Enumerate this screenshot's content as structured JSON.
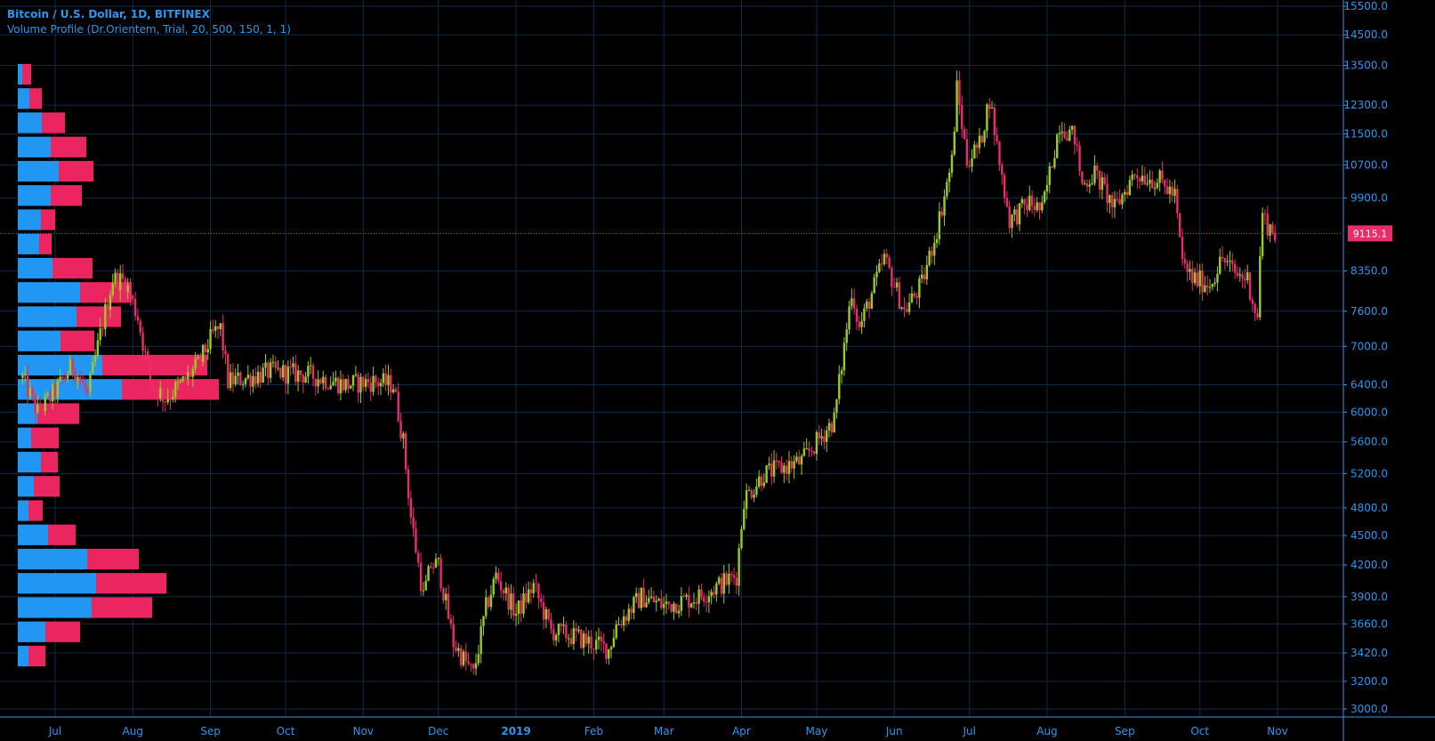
{
  "header": {
    "symbol_line": "Bitcoin / U.S. Dollar, 1D, BITFINEX",
    "indicator_line": "Volume Profile (Dr.Orientem, Trial, 20, 500, 150, 1, 1)"
  },
  "colors": {
    "background": "#000000",
    "grid": "#0e2a4a",
    "axis_text": "#2a97f0",
    "up": "#9ccc24",
    "down": "#ea2d6a",
    "vp_up": "#2196f3",
    "vp_down": "#ea2560",
    "last_price": "#ea2d6a"
  },
  "chart_data": {
    "type": "candlestick",
    "title": "Bitcoin / U.S. Dollar, 1D, BITFINEX",
    "y_scale": "log",
    "ylim": [
      3000,
      15500
    ],
    "y_ticks": [
      15500,
      14500,
      13500,
      12300,
      11500,
      10700,
      9900,
      9115.1,
      8350,
      7600,
      7000,
      6400,
      6000,
      5600,
      5200,
      4800,
      4500,
      4200,
      3900,
      3660,
      3420,
      3200,
      3000
    ],
    "y_tick_labels": [
      "15500.0",
      "14500.0",
      "13500.0",
      "12300.0",
      "11500.0",
      "10700.0",
      "9900.0",
      "9115.1",
      "8350.0",
      "7600.0",
      "7000.0",
      "6400.0",
      "6000.0",
      "5600.0",
      "5200.0",
      "4800.0",
      "4500.0",
      "4200.0",
      "3900.0",
      "3660.0",
      "3420.0",
      "3200.0",
      "3000.0"
    ],
    "x_labels": [
      {
        "label": "Jul",
        "date": "2018-07-01",
        "bold": false
      },
      {
        "label": "Aug",
        "date": "2018-08-01",
        "bold": false
      },
      {
        "label": "Sep",
        "date": "2018-09-01",
        "bold": false
      },
      {
        "label": "Oct",
        "date": "2018-10-01",
        "bold": false
      },
      {
        "label": "Nov",
        "date": "2018-11-01",
        "bold": false
      },
      {
        "label": "Dec",
        "date": "2018-12-01",
        "bold": false
      },
      {
        "label": "2019",
        "date": "2019-01-01",
        "bold": true
      },
      {
        "label": "Feb",
        "date": "2019-02-01",
        "bold": false
      },
      {
        "label": "Mar",
        "date": "2019-03-01",
        "bold": false
      },
      {
        "label": "Apr",
        "date": "2019-04-01",
        "bold": false
      },
      {
        "label": "May",
        "date": "2019-05-01",
        "bold": false
      },
      {
        "label": "Jun",
        "date": "2019-06-01",
        "bold": false
      },
      {
        "label": "Jul",
        "date": "2019-07-01",
        "bold": false
      },
      {
        "label": "Aug",
        "date": "2019-08-01",
        "bold": false
      },
      {
        "label": "Sep",
        "date": "2019-09-01",
        "bold": false
      },
      {
        "label": "Oct",
        "date": "2019-10-01",
        "bold": false
      },
      {
        "label": "Nov",
        "date": "2019-11-01",
        "bold": false
      }
    ],
    "last_price": 9115.1,
    "last_price_label": "9115.1",
    "price_path": [
      [
        "2018-06-18",
        6500
      ],
      [
        "2018-06-24",
        6000
      ],
      [
        "2018-07-01",
        6300
      ],
      [
        "2018-07-08",
        6700
      ],
      [
        "2018-07-14",
        6250
      ],
      [
        "2018-07-20",
        7400
      ],
      [
        "2018-07-24",
        8200
      ],
      [
        "2018-07-29",
        8150
      ],
      [
        "2018-08-03",
        7500
      ],
      [
        "2018-08-08",
        6450
      ],
      [
        "2018-08-14",
        6200
      ],
      [
        "2018-08-20",
        6400
      ],
      [
        "2018-08-27",
        6700
      ],
      [
        "2018-09-02",
        7200
      ],
      [
        "2018-09-05",
        7300
      ],
      [
        "2018-09-08",
        6450
      ],
      [
        "2018-09-15",
        6500
      ],
      [
        "2018-09-25",
        6600
      ],
      [
        "2018-10-10",
        6550
      ],
      [
        "2018-10-25",
        6400
      ],
      [
        "2018-11-05",
        6450
      ],
      [
        "2018-11-13",
        6400
      ],
      [
        "2018-11-17",
        5600
      ],
      [
        "2018-11-20",
        4700
      ],
      [
        "2018-11-25",
        3900
      ],
      [
        "2018-11-28",
        4200
      ],
      [
        "2018-12-01",
        4200
      ],
      [
        "2018-12-07",
        3500
      ],
      [
        "2018-12-15",
        3250
      ],
      [
        "2018-12-20",
        3800
      ],
      [
        "2018-12-24",
        4100
      ],
      [
        "2019-01-01",
        3750
      ],
      [
        "2019-01-08",
        4000
      ],
      [
        "2019-01-15",
        3600
      ],
      [
        "2019-01-25",
        3550
      ],
      [
        "2019-02-07",
        3450
      ],
      [
        "2019-02-10",
        3650
      ],
      [
        "2019-02-20",
        3900
      ],
      [
        "2019-03-01",
        3820
      ],
      [
        "2019-03-15",
        3900
      ],
      [
        "2019-03-30",
        4100
      ],
      [
        "2019-04-02",
        4900
      ],
      [
        "2019-04-10",
        5200
      ],
      [
        "2019-04-25",
        5350
      ],
      [
        "2019-05-08",
        5900
      ],
      [
        "2019-05-12",
        7000
      ],
      [
        "2019-05-15",
        8000
      ],
      [
        "2019-05-18",
        7300
      ],
      [
        "2019-05-28",
        8600
      ],
      [
        "2019-06-05",
        7600
      ],
      [
        "2019-06-12",
        8100
      ],
      [
        "2019-06-18",
        9200
      ],
      [
        "2019-06-24",
        10800
      ],
      [
        "2019-06-26",
        12800
      ],
      [
        "2019-06-30",
        10800
      ],
      [
        "2019-07-05",
        11200
      ],
      [
        "2019-07-09",
        12500
      ],
      [
        "2019-07-14",
        10400
      ],
      [
        "2019-07-17",
        9400
      ],
      [
        "2019-07-25",
        9800
      ],
      [
        "2019-07-30",
        9600
      ],
      [
        "2019-08-06",
        11800
      ],
      [
        "2019-08-12",
        11400
      ],
      [
        "2019-08-15",
        10200
      ],
      [
        "2019-08-20",
        10500
      ],
      [
        "2019-08-28",
        9650
      ],
      [
        "2019-09-05",
        10500
      ],
      [
        "2019-09-15",
        10300
      ],
      [
        "2019-09-21",
        9950
      ],
      [
        "2019-09-24",
        8500
      ],
      [
        "2019-09-28",
        8200
      ],
      [
        "2019-10-05",
        8100
      ],
      [
        "2019-10-10",
        8600
      ],
      [
        "2019-10-15",
        8300
      ],
      [
        "2019-10-20",
        8200
      ],
      [
        "2019-10-24",
        7450
      ],
      [
        "2019-10-25",
        8700
      ],
      [
        "2019-10-26",
        9500
      ],
      [
        "2019-10-28",
        9300
      ],
      [
        "2019-10-31",
        9115
      ]
    ],
    "volume_profile": {
      "price_from": 3300,
      "price_to": 13600,
      "rows_top_to_bottom": [
        {
          "up": 5,
          "down": 10
        },
        {
          "up": 13,
          "down": 14
        },
        {
          "up": 27,
          "down": 26
        },
        {
          "up": 37,
          "down": 40
        },
        {
          "up": 46,
          "down": 39
        },
        {
          "up": 37,
          "down": 35
        },
        {
          "up": 26,
          "down": 16
        },
        {
          "up": 24,
          "down": 14
        },
        {
          "up": 39,
          "down": 45
        },
        {
          "up": 70,
          "down": 58
        },
        {
          "up": 66,
          "down": 50
        },
        {
          "up": 48,
          "down": 38
        },
        {
          "up": 95,
          "down": 118
        },
        {
          "up": 117,
          "down": 109
        },
        {
          "up": 22,
          "down": 47
        },
        {
          "up": 15,
          "down": 31
        },
        {
          "up": 26,
          "down": 19
        },
        {
          "up": 18,
          "down": 29
        },
        {
          "up": 12,
          "down": 16
        },
        {
          "up": 34,
          "down": 31
        },
        {
          "up": 78,
          "down": 58
        },
        {
          "up": 88,
          "down": 79
        },
        {
          "up": 83,
          "down": 68
        },
        {
          "up": 31,
          "down": 39
        },
        {
          "up": 12,
          "down": 19
        }
      ]
    }
  }
}
